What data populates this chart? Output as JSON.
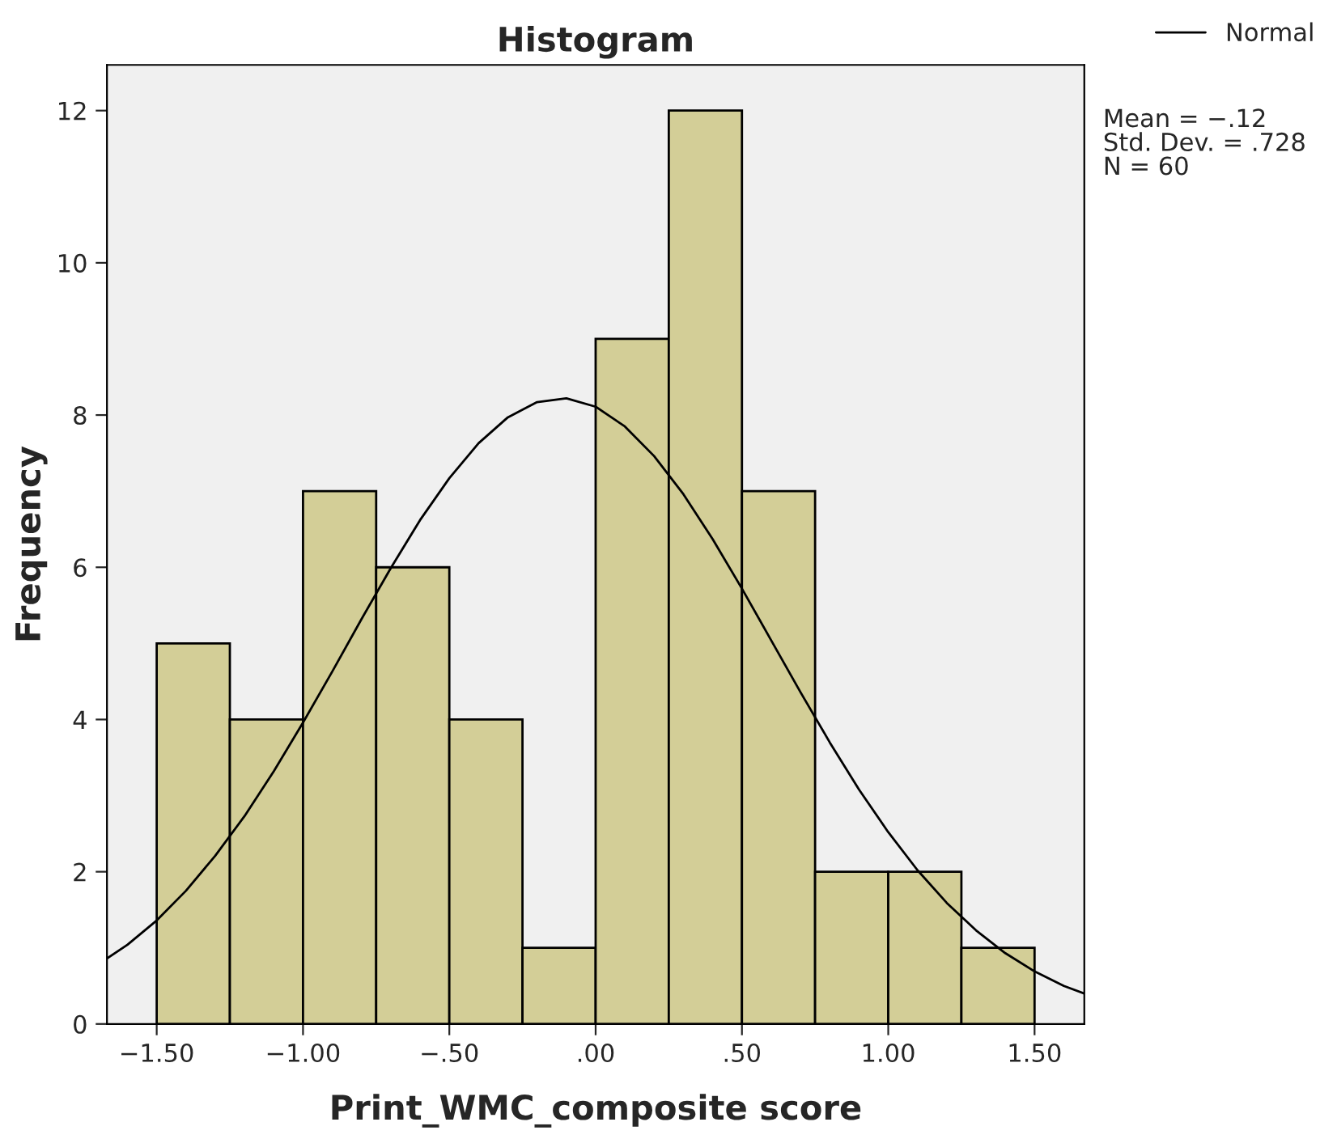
{
  "chart_data": {
    "type": "histogram",
    "title": "Histogram",
    "xlabel": "Print_WMC_composite score",
    "ylabel": "Frequency",
    "series": [
      {
        "color": "#d3ce97",
        "bins": [
          -1.5,
          -1.25,
          -1.0,
          -0.75,
          -0.5,
          -0.25,
          0.0,
          0.25,
          0.5,
          0.75,
          1.0,
          1.25,
          1.5
        ],
        "values": [
          5,
          4,
          7,
          6,
          4,
          1,
          9,
          12,
          7,
          2,
          2,
          1
        ]
      },
      {
        "type": "line",
        "name": "Normal",
        "color": "#000000",
        "x": [
          -1.67,
          -1.6,
          -1.5,
          -1.4,
          -1.3,
          -1.2,
          -1.1,
          -1.0,
          -0.9,
          -0.8,
          -0.7,
          -0.6,
          -0.5,
          -0.4,
          -0.3,
          -0.2,
          -0.1,
          0.0,
          0.1,
          0.2,
          0.3,
          0.4,
          0.5,
          0.6,
          0.7,
          0.8,
          0.9,
          1.0,
          1.1,
          1.2,
          1.3,
          1.4,
          1.5,
          1.6,
          1.67
        ],
        "values": [
          0.86,
          1.04,
          1.36,
          1.75,
          2.21,
          2.73,
          3.32,
          3.96,
          4.63,
          5.32,
          5.99,
          6.62,
          7.17,
          7.63,
          7.97,
          8.17,
          8.22,
          8.11,
          7.85,
          7.46,
          6.96,
          6.37,
          5.72,
          5.04,
          4.36,
          3.7,
          3.08,
          2.52,
          2.02,
          1.59,
          1.23,
          0.93,
          0.69,
          0.5,
          0.4
        ]
      }
    ],
    "xlim": [
      -1.67,
      1.67
    ],
    "ylim": [
      0,
      12.6
    ],
    "xticks": [
      {
        "value": -1.5,
        "label": "−1.50"
      },
      {
        "value": -1.0,
        "label": "−1.00"
      },
      {
        "value": -0.5,
        "label": "−.50"
      },
      {
        "value": 0.0,
        "label": ".00"
      },
      {
        "value": 0.5,
        "label": ".50"
      },
      {
        "value": 1.0,
        "label": "1.00"
      },
      {
        "value": 1.5,
        "label": "1.50"
      }
    ],
    "yticks": [
      0,
      2,
      4,
      6,
      8,
      10,
      12
    ],
    "annotations": [
      "Mean = −.12\nStd. Dev. = .728\nN = 60"
    ],
    "legend": "top right",
    "grid": false
  }
}
